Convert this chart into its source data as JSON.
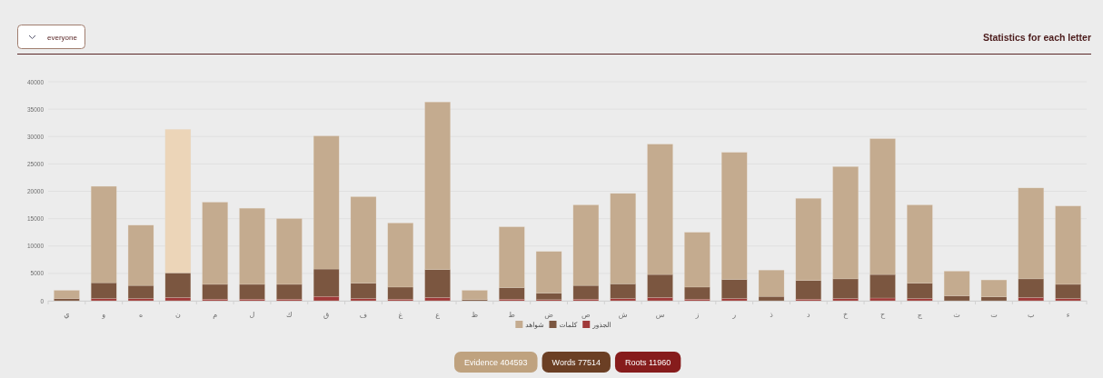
{
  "chart_data": {
    "type": "bar",
    "title": "Statistics for each letter",
    "stacked": true,
    "categories": [
      "ي",
      "و",
      "ه",
      "ن",
      "م",
      "ل",
      "ك",
      "ق",
      "ف",
      "غ",
      "ع",
      "ظ",
      "ط",
      "ض",
      "ص",
      "ش",
      "س",
      "ز",
      "ر",
      "ذ",
      "د",
      "خ",
      "ح",
      "ج",
      "ث",
      "ت",
      "ب",
      "ء"
    ],
    "series": [
      {
        "name": "الجذور",
        "color": "#a03a3a",
        "values": [
          null,
          400,
          400,
          600,
          300,
          300,
          300,
          800,
          400,
          300,
          600,
          null,
          300,
          200,
          300,
          400,
          600,
          300,
          400,
          null,
          300,
          400,
          500,
          400,
          null,
          null,
          600,
          400
        ]
      },
      {
        "name": "كلمات",
        "color": "#7b5640",
        "values": [
          400,
          2900,
          2400,
          4500,
          2700,
          2700,
          2700,
          5000,
          2800,
          2200,
          5100,
          200,
          2100,
          1200,
          2500,
          2700,
          4200,
          2200,
          3500,
          800,
          3400,
          3600,
          4300,
          2800,
          900,
          700,
          3400,
          2600
        ]
      },
      {
        "name": "شواهد",
        "color": "#c4ab8f",
        "colors": [
          "#c4ab8f",
          "#c4ab8f",
          "#c4ab8f",
          "#ecd5b8",
          "#c4ab8f",
          "#c4ab8f",
          "#c4ab8f",
          "#c4ab8f",
          "#c4ab8f",
          "#c4ab8f",
          "#c4ab8f",
          "#c4ab8f",
          "#c4ab8f",
          "#c4ab8f",
          "#c4ab8f",
          "#c4ab8f",
          "#c4ab8f",
          "#c4ab8f",
          "#c4ab8f",
          "#c4ab8f",
          "#c4ab8f",
          "#c4ab8f",
          "#c4ab8f",
          "#c4ab8f",
          "#c4ab8f",
          "#c4ab8f",
          "#c4ab8f",
          "#c4ab8f"
        ],
        "values": [
          1500,
          17600,
          11000,
          26200,
          15000,
          13900,
          12000,
          24300,
          15800,
          11700,
          30600,
          1700,
          11100,
          7600,
          14700,
          16500,
          23800,
          10000,
          23200,
          4800,
          15000,
          20500,
          24800,
          14300,
          4500,
          3100,
          16600,
          14300
        ]
      }
    ],
    "ylim": [
      0,
      40000
    ],
    "yticks": [
      0,
      5000,
      10000,
      15000,
      20000,
      25000,
      30000,
      35000,
      40000
    ],
    "grid": "y",
    "legend": "bottom",
    "annotations": [
      "everyone",
      "Evidence 404593",
      "Words 77514",
      "Roots 11960"
    ]
  }
}
